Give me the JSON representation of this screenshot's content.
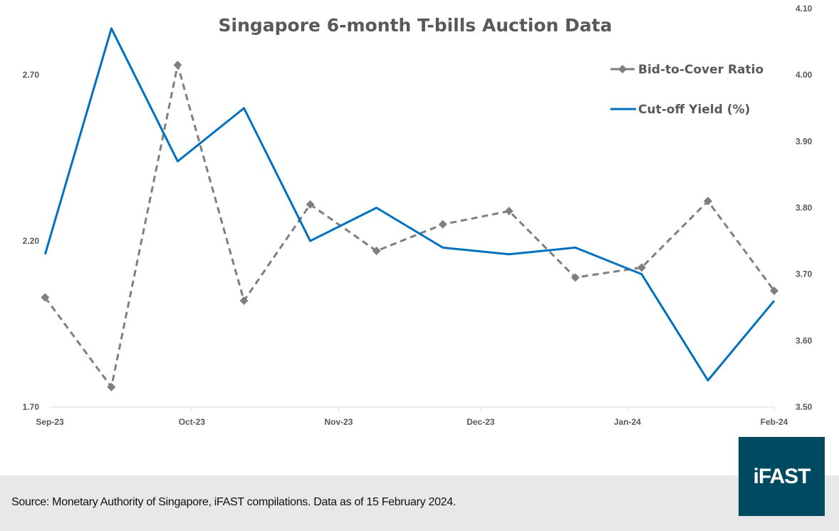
{
  "chart_data": {
    "type": "line",
    "title": "Singapore 6-month T-bills Auction Data",
    "x": [
      "2023-08-31",
      "2023-09-14",
      "2023-09-28",
      "2023-10-12",
      "2023-10-26",
      "2023-11-09",
      "2023-11-23",
      "2023-12-07",
      "2023-12-21",
      "2024-01-04",
      "2024-01-18",
      "2024-02-01"
    ],
    "x_tick_labels": [
      "Sep-23",
      "Oct-23",
      "Nov-23",
      "Dec-23",
      "Jan-24",
      "Feb-24"
    ],
    "x_tick_dates": [
      "2023-09-01",
      "2023-10-01",
      "2023-11-01",
      "2023-12-01",
      "2024-01-01",
      "2024-02-01"
    ],
    "xlim": [
      "2023-09-01",
      "2024-02-01"
    ],
    "series": [
      {
        "name": "Bid-to-Cover Ratio",
        "axis": "left",
        "color": "#7f7f7f",
        "style": "dashed",
        "marker": "diamond",
        "values": [
          2.03,
          1.76,
          2.73,
          2.02,
          2.31,
          2.17,
          2.25,
          2.29,
          2.09,
          2.12,
          2.32,
          2.05
        ]
      },
      {
        "name": "Cut-off Yield (%)",
        "axis": "right",
        "color": "#0070c0",
        "style": "solid",
        "marker": "none",
        "values": [
          3.73,
          4.07,
          3.87,
          3.95,
          3.75,
          3.8,
          3.74,
          3.73,
          3.74,
          3.7,
          3.54,
          3.66
        ]
      }
    ],
    "ylim_left": [
      1.7,
      2.9
    ],
    "left_ticks": [
      "1.70",
      "2.20",
      "2.70"
    ],
    "ylim_right": [
      3.5,
      4.1
    ],
    "right_ticks": [
      "3.50",
      "3.60",
      "3.70",
      "3.80",
      "3.90",
      "4.00",
      "4.10"
    ],
    "grid": false,
    "legend_position": "top-right"
  },
  "footer": {
    "source": "Source: Monetary Authority of Singapore, iFAST compilations. Data as of 15 February 2024."
  },
  "logo": {
    "text": "iFAST",
    "color": "#004a61"
  }
}
